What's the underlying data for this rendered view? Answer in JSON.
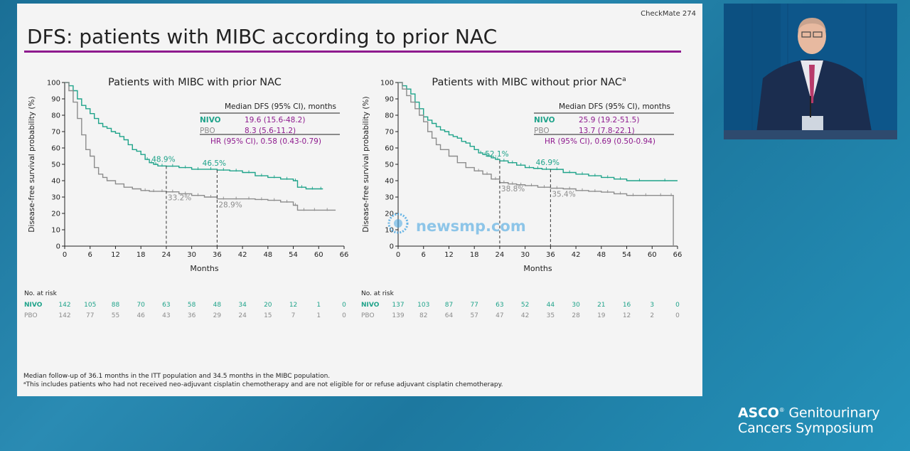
{
  "slide": {
    "tag": "CheckMate 274",
    "title": "DFS: patients with MIBC according to prior NAC",
    "accent_color": "#8e1a8e",
    "footnote1": "Median follow-up of 36.1 months in the ITT population and 34.5 months in the MIBC population.",
    "footnote2": "ᵃThis includes patients who had not received neo-adjuvant cisplatin chemotherapy and are not eligible for or refuse adjuvant cisplatin chemotherapy."
  },
  "watermark": "newsmp.com",
  "branding": {
    "line1_bold": "ASCO",
    "line1_rest": "Genitourinary",
    "line2": "Cancers Symposium"
  },
  "colors": {
    "nivo": "#1fa38a",
    "pbo": "#8c8c8c",
    "hr": "#8e1a8e",
    "axis": "#222222"
  },
  "chart_data": [
    {
      "type": "line",
      "title": "Patients with MIBC with prior NAC",
      "xlabel": "Months",
      "ylabel": "Disease-free survival probability (%)",
      "xlim": [
        0,
        66
      ],
      "ylim": [
        0,
        100
      ],
      "xticks": [
        0,
        6,
        12,
        18,
        24,
        30,
        36,
        42,
        48,
        54,
        60,
        66
      ],
      "yticks": [
        0,
        10,
        20,
        30,
        40,
        50,
        60,
        70,
        80,
        90,
        100
      ],
      "legend_header": "Median DFS (95% CI), months",
      "legend": [
        {
          "name": "NIVO",
          "value": "19.6 (15.6-48.2)"
        },
        {
          "name": "PBO",
          "value": "8.3 (5.6-11.2)"
        }
      ],
      "hr": "HR (95% CI), 0.58 (0.43-0.79)",
      "annotations": [
        {
          "x": 24,
          "y": 48.9,
          "label": "48.9%",
          "series": "NIVO"
        },
        {
          "x": 36,
          "y": 46.5,
          "label": "46.5%",
          "series": "NIVO"
        },
        {
          "x": 24,
          "y": 33.2,
          "label": "33.2%",
          "series": "PBO"
        },
        {
          "x": 36,
          "y": 28.9,
          "label": "28.9%",
          "series": "PBO"
        }
      ],
      "series": [
        {
          "name": "NIVO",
          "x": [
            0,
            1,
            2,
            3,
            4,
            5,
            6,
            7,
            8,
            9,
            10,
            11,
            12,
            13,
            14,
            15,
            16,
            17,
            18,
            19,
            20,
            21,
            22,
            24,
            27,
            30,
            33,
            36,
            39,
            42,
            45,
            48,
            51,
            54,
            55,
            57,
            60,
            61
          ],
          "y": [
            100,
            98,
            95,
            90,
            86,
            84,
            81,
            78,
            75,
            73,
            72,
            70,
            69,
            67,
            65,
            62,
            59,
            58,
            56,
            53,
            51,
            50,
            49,
            48.9,
            48,
            47,
            47,
            46.5,
            46,
            45,
            43,
            42,
            41,
            40,
            36,
            35,
            35,
            35
          ]
        },
        {
          "name": "PBO",
          "x": [
            0,
            1,
            2,
            3,
            4,
            5,
            6,
            7,
            8,
            9,
            10,
            12,
            14,
            16,
            18,
            20,
            22,
            24,
            27,
            30,
            33,
            36,
            39,
            42,
            45,
            48,
            51,
            54,
            55,
            58,
            60,
            64
          ],
          "y": [
            100,
            95,
            88,
            78,
            68,
            59,
            55,
            48,
            44,
            42,
            40,
            38,
            36,
            35,
            34,
            33.5,
            33.5,
            33.2,
            32,
            31,
            30,
            28.9,
            28.9,
            28.9,
            28.5,
            28,
            27,
            25,
            22,
            22,
            22,
            22
          ]
        }
      ],
      "risk_table": {
        "header": "No. at risk",
        "rows": [
          {
            "name": "NIVO",
            "values": [
              "142",
              "105",
              "88",
              "70",
              "63",
              "58",
              "48",
              "34",
              "20",
              "12",
              "1",
              "0"
            ]
          },
          {
            "name": "PBO",
            "values": [
              "142",
              "77",
              "55",
              "46",
              "43",
              "36",
              "29",
              "24",
              "15",
              "7",
              "1",
              "0"
            ]
          }
        ]
      }
    },
    {
      "type": "line",
      "title": "Patients with MIBC without prior NAC",
      "title_sup": "a",
      "xlabel": "Months",
      "ylabel": "Disease-free survival probability (%)",
      "xlim": [
        0,
        66
      ],
      "ylim": [
        0,
        100
      ],
      "xticks": [
        0,
        6,
        12,
        18,
        24,
        30,
        36,
        42,
        48,
        54,
        60,
        66
      ],
      "yticks": [
        0,
        10,
        20,
        30,
        40,
        50,
        60,
        70,
        80,
        90,
        100
      ],
      "legend_header": "Median DFS (95% CI), months",
      "legend": [
        {
          "name": "NIVO",
          "value": "25.9 (19.2-51.5)"
        },
        {
          "name": "PBO",
          "value": "13.7 (7.8-22.1)"
        }
      ],
      "hr": "HR (95% CI), 0.69 (0.50-0.94)",
      "annotations": [
        {
          "x": 24,
          "y": 52.1,
          "label": "52.1%",
          "series": "NIVO"
        },
        {
          "x": 36,
          "y": 46.9,
          "label": "46.9%",
          "series": "NIVO"
        },
        {
          "x": 24,
          "y": 38.8,
          "label": "38.8%",
          "series": "PBO"
        },
        {
          "x": 36,
          "y": 35.4,
          "label": "35.4%",
          "series": "PBO"
        }
      ],
      "series": [
        {
          "name": "NIVO",
          "x": [
            0,
            1,
            2,
            3,
            4,
            5,
            6,
            7,
            8,
            9,
            10,
            11,
            12,
            13,
            14,
            15,
            16,
            17,
            18,
            19,
            20,
            21,
            22,
            23,
            24,
            26,
            28,
            30,
            32,
            34,
            36,
            39,
            42,
            45,
            48,
            51,
            54,
            60,
            66
          ],
          "y": [
            100,
            98,
            96,
            93,
            88,
            84,
            79,
            77,
            75,
            73,
            71,
            70,
            68,
            67,
            66,
            64,
            63,
            61,
            59,
            57,
            56,
            55,
            54,
            53,
            52.1,
            51,
            49.5,
            48,
            47.5,
            47,
            46.9,
            45,
            44,
            43,
            42,
            41,
            40,
            40,
            40
          ]
        },
        {
          "name": "PBO",
          "x": [
            0,
            1,
            2,
            3,
            4,
            5,
            6,
            7,
            8,
            9,
            10,
            12,
            14,
            16,
            18,
            20,
            22,
            24,
            26,
            28,
            30,
            33,
            36,
            39,
            42,
            45,
            48,
            51,
            54,
            57,
            60,
            64,
            65,
            65.01
          ],
          "y": [
            100,
            96,
            92,
            88,
            84,
            80,
            76,
            70,
            66,
            62,
            59,
            55,
            51,
            48,
            46,
            44,
            41,
            38.8,
            38,
            37.5,
            37,
            36,
            35.4,
            35,
            34,
            33.5,
            33,
            32,
            31,
            31,
            31,
            31,
            31,
            0
          ]
        }
      ],
      "risk_table": {
        "header": "No. at risk",
        "rows": [
          {
            "name": "NIVO",
            "values": [
              "137",
              "103",
              "87",
              "77",
              "63",
              "52",
              "44",
              "30",
              "21",
              "16",
              "3",
              "0"
            ]
          },
          {
            "name": "PBO",
            "values": [
              "139",
              "82",
              "64",
              "57",
              "47",
              "42",
              "35",
              "28",
              "19",
              "12",
              "2",
              "0"
            ]
          }
        ]
      }
    }
  ]
}
